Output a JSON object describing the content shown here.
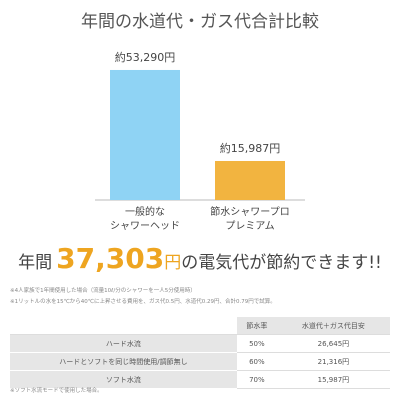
{
  "chart_data": {
    "type": "bar",
    "title": "年間の水道代・ガス代合計比較",
    "categories": [
      [
        "一般的な",
        "シャワーヘッド"
      ],
      [
        "節水シャワープロ",
        "プレミアム"
      ]
    ],
    "values": [
      53290,
      15987
    ],
    "value_labels": [
      "約53,290円",
      "約15,987円"
    ],
    "colors": [
      "#8fd3f4",
      "#f2b440"
    ]
  },
  "headline": {
    "prefix": "年間",
    "amount": "37,303",
    "unit": "円",
    "suffix": "の電気代が節約できます!!"
  },
  "notes": [
    "※4人家族で1年間使用した場合（流量10ℓ/分のシャワーを一人5分使用時）",
    "※1リットルの水を15℃から40℃に上昇させる費用を、ガス代0.5円、水道代0.29円、合計0.79円で試算。"
  ],
  "table": {
    "header": [
      "節水率",
      "水道代＋ガス代目安"
    ],
    "rows": [
      [
        "ハード水流",
        "50%",
        "26,645円"
      ],
      [
        "ハードとソフトを同じ時間使用/調節無し",
        "60%",
        "21,316円"
      ],
      [
        "ソフト水流",
        "70%",
        "15,987円"
      ]
    ]
  },
  "footnote": "※ソフト水流モードで使用した場合。"
}
